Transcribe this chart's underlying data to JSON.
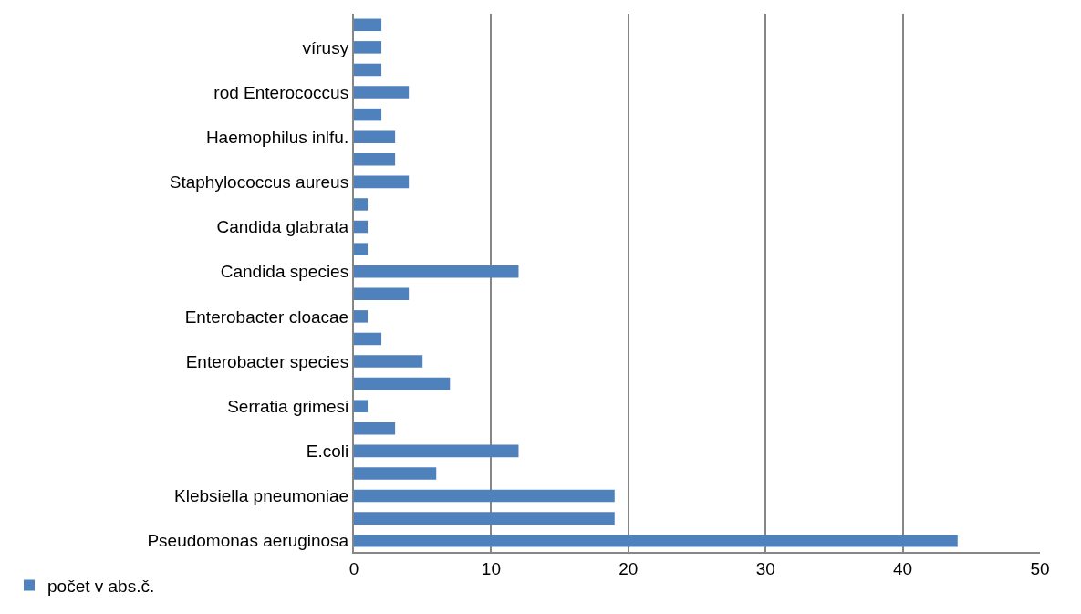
{
  "chart_data": {
    "type": "bar",
    "orientation": "horizontal",
    "categories": [
      null,
      "vírusy",
      null,
      "rod Enterococcus",
      null,
      "Haemophilus inlfu.",
      null,
      "Staphylococcus aureus",
      null,
      "Candida glabrata",
      null,
      "Candida species",
      null,
      "Enterobacter cloacae",
      null,
      "Enterobacter species",
      null,
      "Serratia grimesi",
      null,
      "E.coli",
      null,
      "Klebsiella pneumoniae",
      null,
      "Pseudomonas aeruginosa"
    ],
    "series": [
      {
        "name": "počet v abs.č.",
        "color": "#4f81bd",
        "values": [
          2,
          2,
          2,
          4,
          2,
          3,
          3,
          4,
          1,
          1,
          1,
          12,
          4,
          1,
          2,
          5,
          7,
          1,
          3,
          12,
          6,
          19,
          19,
          44
        ]
      }
    ],
    "xlim": [
      0,
      50
    ],
    "xticks": [
      0,
      10,
      20,
      30,
      40,
      50
    ],
    "grid": "x",
    "legend": "bottom left"
  }
}
